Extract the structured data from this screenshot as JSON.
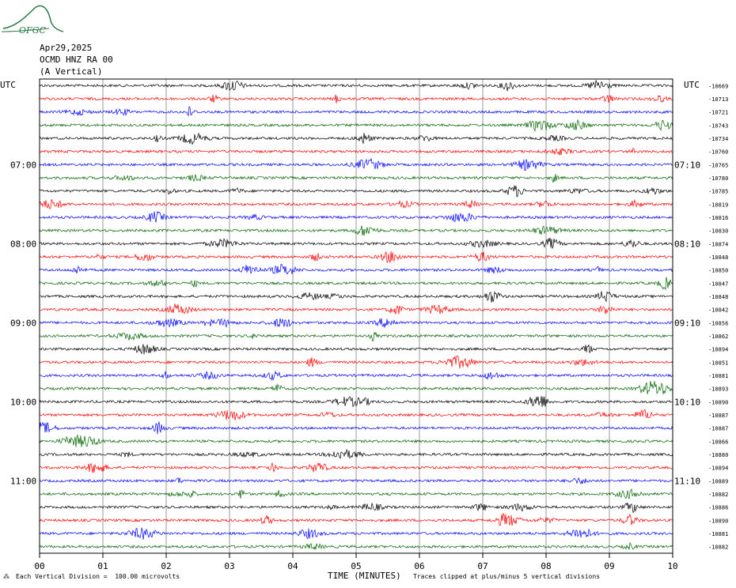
{
  "header": {
    "logo_text": "OFGC",
    "date": "Apr29,2025",
    "station": "OCMD HNZ RA 00",
    "component": "(A Vertical)"
  },
  "axes": {
    "left_title": "UTC",
    "right_title": "UTC",
    "right_col_header": "-10669",
    "xlabel": "TIME (MINUTES)",
    "x_ticks": [
      "00",
      "01",
      "02",
      "03",
      "04",
      "05",
      "06",
      "07",
      "08",
      "09",
      "10"
    ],
    "left_times": [
      {
        "label": "07:00",
        "row": 6
      },
      {
        "label": "08:00",
        "row": 12
      },
      {
        "label": "09:00",
        "row": 18
      },
      {
        "label": "10:00",
        "row": 24
      },
      {
        "label": "11:00",
        "row": 30
      }
    ],
    "right_times": [
      {
        "label": "07:10",
        "row": 6
      },
      {
        "label": "08:10",
        "row": 12
      },
      {
        "label": "09:10",
        "row": 18
      },
      {
        "label": "10:10",
        "row": 24
      },
      {
        "label": "11:10",
        "row": 30
      }
    ]
  },
  "footer": {
    "scale_note": "Each Vertical Division =  100.00 microvolts",
    "clip_note": "Traces clipped at plus/minus 5 vertical divisions"
  },
  "colors": {
    "black": "#000000",
    "red": "#ff0000",
    "blue": "#0000ff",
    "green": "#006400",
    "logo": "#2a7a45"
  },
  "chart_data": {
    "type": "helicorder",
    "title": "OCMD HNZ RA 00",
    "xlabel": "TIME (MINUTES)",
    "xlim": [
      0,
      10
    ],
    "trace_colors": [
      "black",
      "red",
      "blue",
      "green"
    ],
    "minutes_per_line": 10,
    "trace_offsets": [
      "-10669",
      "-10713",
      "-10721",
      "-10743",
      "-10734",
      "-10760",
      "-10765",
      "-10780",
      "-10785",
      "-10819",
      "-10816",
      "-10830",
      "-10874",
      "-10848",
      "-10850",
      "-10847",
      "-10848",
      "-10842",
      "-10856",
      "-10862",
      "-10894",
      "-10851",
      "-10881",
      "-10893",
      "-10890",
      "-10887",
      "-10887",
      "-10866",
      "-10880",
      "-10894",
      "-10889",
      "-10882",
      "-10886",
      "-10890",
      "-10881",
      "-10882"
    ]
  }
}
